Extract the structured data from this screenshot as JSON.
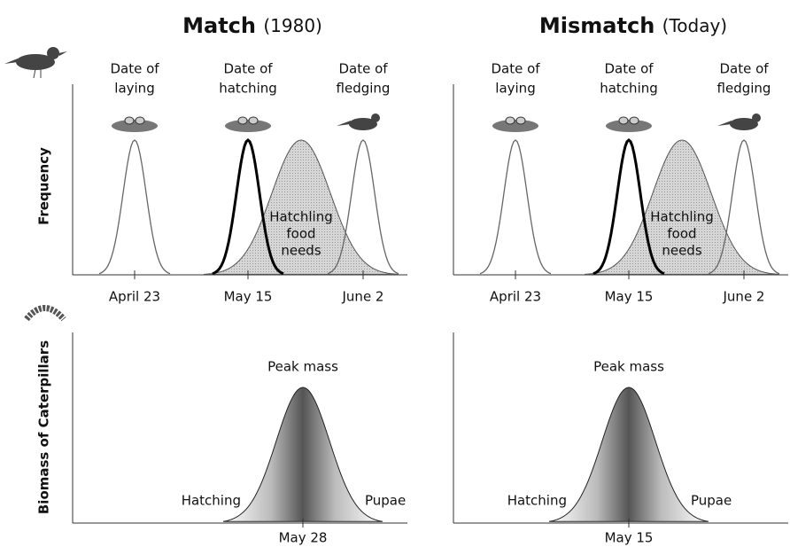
{
  "y_axis_labels": {
    "top": "Frequency",
    "bottom": "Biomass of Caterpillars"
  },
  "panels": [
    {
      "title": "Match",
      "title_note": "(1980)",
      "bird": {
        "events": [
          [
            "Date of",
            "laying"
          ],
          [
            "Date of",
            "hatching"
          ],
          [
            "Date of",
            "fledging"
          ]
        ],
        "dates": [
          "April 23",
          "May 15",
          "June 2"
        ],
        "food_label": [
          "Hatchling",
          "food",
          "needs"
        ]
      },
      "caterpillar": {
        "peak_label": "Peak mass",
        "start_label": "Hatching",
        "end_label": "Pupae",
        "date": "May 28"
      }
    },
    {
      "title": "Mismatch",
      "title_note": "(Today)",
      "bird": {
        "events": [
          [
            "Date of",
            "laying"
          ],
          [
            "Date of",
            "hatching"
          ],
          [
            "Date of",
            "fledging"
          ]
        ],
        "dates": [
          "April 23",
          "May 15",
          "June 2"
        ],
        "food_label": [
          "Hatchling",
          "food",
          "needs"
        ]
      },
      "caterpillar": {
        "peak_label": "Peak mass",
        "start_label": "Hatching",
        "end_label": "Pupae",
        "date": "May 15"
      }
    }
  ]
}
